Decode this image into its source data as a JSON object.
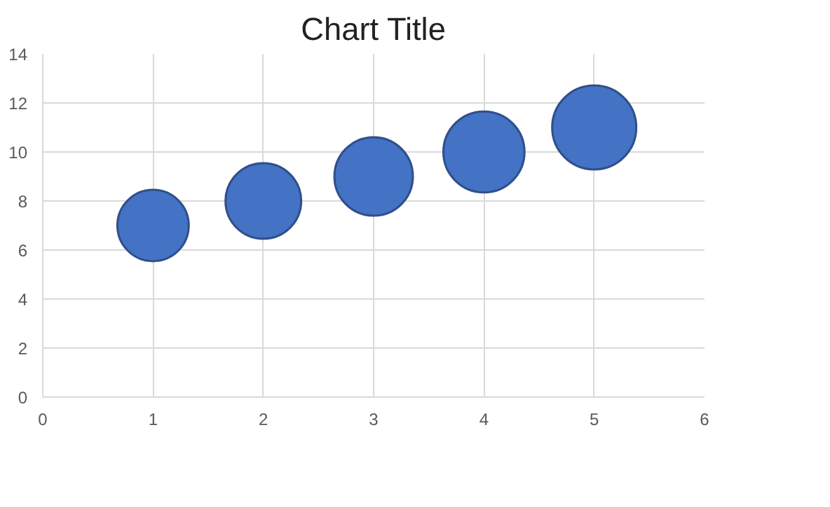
{
  "chart_data": {
    "type": "bubble",
    "title": "Chart Title",
    "x": [
      1,
      2,
      3,
      4,
      5
    ],
    "series": [
      {
        "color": "#4472c4",
        "values": [
          7,
          8,
          9,
          10,
          11
        ],
        "sizes": [
          0.72,
          0.81,
          0.87,
          0.93,
          1
        ]
      }
    ],
    "xlim": [
      0,
      6
    ],
    "xticks": [
      0,
      1,
      2,
      3,
      4,
      5,
      6
    ],
    "ylim": [
      0,
      14
    ],
    "yticks": [
      0,
      2,
      4,
      6,
      8,
      10,
      12,
      14
    ],
    "grid": true
  }
}
